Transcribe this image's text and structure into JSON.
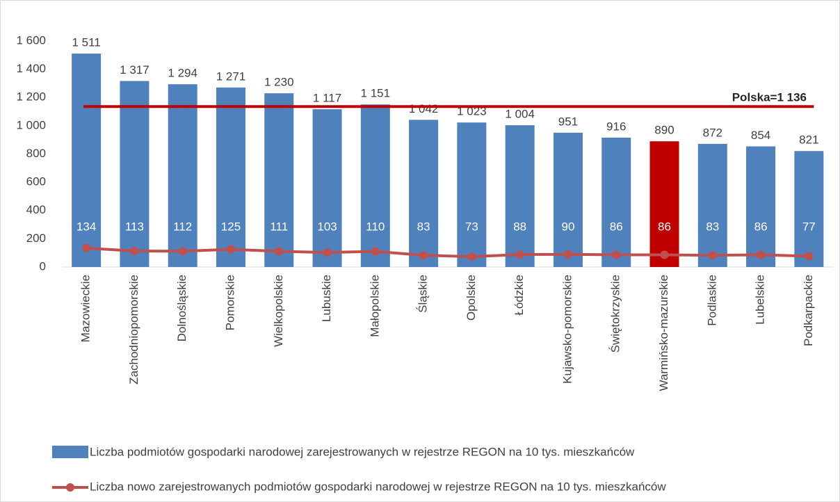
{
  "chart_data": {
    "type": "bar",
    "categories": [
      "Mazowieckie",
      "Zachodniopomorskie",
      "Dolnośląskie",
      "Pomorskie",
      "Wielkopolskie",
      "Lubuskie",
      "Małopolskie",
      "Śląskie",
      "Opolskie",
      "Łódzkie",
      "Kujawsko-pomorskie",
      "Świętokrzyskie",
      "Warmińsko-mazurskie",
      "Podlaskie",
      "Lubelskie",
      "Podkarpackie"
    ],
    "series": [
      {
        "name": "Liczba podmiotów gospodarki narodowej zarejestrowanych w rejestrze REGON na 10 tys. mieszkańców",
        "type": "bar",
        "color": "#4f81bd",
        "colors": [
          "#4f81bd",
          "#4f81bd",
          "#4f81bd",
          "#4f81bd",
          "#4f81bd",
          "#4f81bd",
          "#4f81bd",
          "#4f81bd",
          "#4f81bd",
          "#4f81bd",
          "#4f81bd",
          "#4f81bd",
          "#c00000",
          "#4f81bd",
          "#4f81bd",
          "#4f81bd"
        ],
        "values": [
          1511,
          1317,
          1294,
          1271,
          1230,
          1117,
          1151,
          1042,
          1023,
          1004,
          951,
          916,
          890,
          872,
          854,
          821
        ],
        "value_labels": [
          "1 511",
          "1 317",
          "1 294",
          "1 271",
          "1 230",
          "1 117",
          "1 151",
          "1 042",
          "1 023",
          "1 004",
          "951",
          "916",
          "890",
          "872",
          "854",
          "821"
        ]
      },
      {
        "name": "Liczba nowo zarejestrowanych podmiotów gospodarki narodowej w rejestrze REGON na 10 tys. mieszkańców",
        "type": "line",
        "color": "#c0504d",
        "values": [
          134,
          113,
          112,
          125,
          111,
          103,
          110,
          83,
          73,
          88,
          90,
          86,
          86,
          83,
          86,
          77
        ]
      }
    ],
    "reference_line": {
      "value": 1136,
      "label": "Polska=1 136",
      "color": "#c00000"
    },
    "ylim": [
      0,
      1600
    ],
    "yticks": [
      0,
      200,
      400,
      600,
      800,
      {
        "value": 1000,
        "label": "1 000"
      },
      {
        "value": 1200,
        "label": "1 200"
      },
      {
        "value": 1400,
        "label": "1 400"
      },
      {
        "value": 1600,
        "label": "1 600"
      }
    ],
    "legend": "bottom"
  }
}
